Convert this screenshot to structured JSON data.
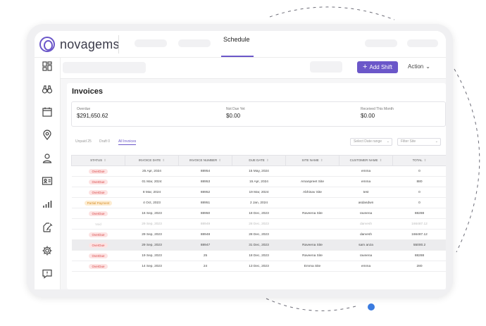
{
  "app": {
    "logo_text": "novagems"
  },
  "nav": {
    "active_tab": "Schedule"
  },
  "toolbar": {
    "add_shift_label": "Add Shift",
    "action_label": "Action"
  },
  "invoices": {
    "title": "Invoices",
    "summary": [
      {
        "label": "Overdue",
        "value": "$291,650.62"
      },
      {
        "label": "Not Due Yet",
        "value": "$0.00"
      },
      {
        "label": "Received This Month",
        "value": "$0.00"
      }
    ],
    "tabs": [
      {
        "label": "Unpaid 25"
      },
      {
        "label": "Draft 0"
      },
      {
        "label": "All Invoices"
      }
    ],
    "filters": {
      "date_range_placeholder": "Select Date range",
      "site_placeholder": "Filter Site"
    },
    "columns": [
      "Status",
      "Invoice Date",
      "Invoice Number",
      "Due Date",
      "Site Name",
      "Customer Name",
      "Total"
    ],
    "rows": [
      {
        "status": "OverDue",
        "invoice_date": "25 Apr, 2024",
        "invoice_number": "88954",
        "due_date": "15 May, 2024",
        "site_name": "",
        "customer_name": "emma",
        "total": "0"
      },
      {
        "status": "OverDue",
        "invoice_date": "01 Mar, 2024",
        "invoice_number": "88953",
        "due_date": "15 Apr, 2024",
        "site_name": "Amanpreet Site",
        "customer_name": "emma",
        "total": "880"
      },
      {
        "status": "OverDue",
        "invoice_date": "8 Mar, 2024",
        "invoice_number": "88952",
        "due_date": "19 Mar, 2024",
        "site_name": "Abhinav Site",
        "customer_name": "test",
        "total": "0"
      },
      {
        "status": "Partial Payment",
        "invoice_date": "4 Oct, 2023",
        "invoice_number": "88951",
        "due_date": "2 Jan, 2024",
        "site_name": "",
        "customer_name": "asdasdwn",
        "total": "0"
      },
      {
        "status": "OverDue",
        "invoice_date": "16 Sep, 2023",
        "invoice_number": "88950",
        "due_date": "18 Dec, 2023",
        "site_name": "Raveena Site",
        "customer_name": "raveena",
        "total": "88288"
      },
      {
        "status": "Void",
        "invoice_date": "29 Sep, 2023",
        "invoice_number": "88949",
        "due_date": "28 Dec, 2023",
        "site_name": "",
        "customer_name": "darvesh",
        "total": "166487.12"
      },
      {
        "status": "OverDue",
        "invoice_date": "29 Sep, 2023",
        "invoice_number": "88948",
        "due_date": "28 Dec, 2023",
        "site_name": "",
        "customer_name": "darvesh",
        "total": "166487.12"
      },
      {
        "status": "OverDue",
        "invoice_date": "29 Sep, 2023",
        "invoice_number": "88947",
        "due_date": "31 Dec, 2023",
        "site_name": "Raveena Site",
        "customer_name": "sam anza",
        "total": "55000.2"
      },
      {
        "status": "OverDue",
        "invoice_date": "19 Sep, 2023",
        "invoice_number": "25",
        "due_date": "18 Dec, 2023",
        "site_name": "Raveena Site",
        "customer_name": "raveena",
        "total": "88288"
      },
      {
        "status": "OverDue",
        "invoice_date": "14 Sep, 2023",
        "invoice_number": "24",
        "due_date": "13 Dec, 2023",
        "site_name": "Emma Site",
        "customer_name": "emma",
        "total": "280"
      }
    ]
  },
  "colors": {
    "accent": "#6b57c9",
    "overdue": "#d94a4a",
    "partial": "#d9902a"
  }
}
